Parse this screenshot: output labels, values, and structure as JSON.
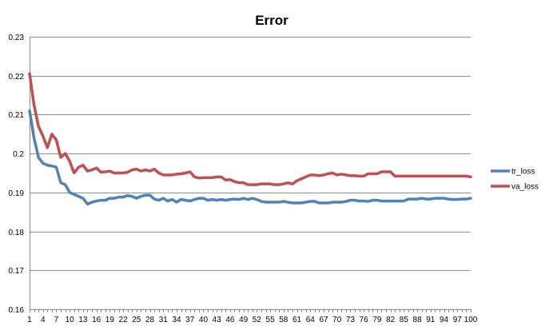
{
  "chart_data": {
    "type": "line",
    "title": "Error",
    "xlabel": "",
    "ylabel": "",
    "ylim": [
      0.16,
      0.23
    ],
    "yticks": [
      0.16,
      0.17,
      0.18,
      0.19,
      0.2,
      0.21,
      0.22,
      0.23
    ],
    "ytick_labels": [
      "0.16",
      "0.17",
      "0.18",
      "0.19",
      "0.2",
      "0.21",
      "0.22",
      "0.23"
    ],
    "xlim": [
      1,
      100
    ],
    "xtick_labels": [
      "1",
      "4",
      "7",
      "10",
      "13",
      "16",
      "19",
      "22",
      "25",
      "28",
      "31",
      "34",
      "37",
      "40",
      "43",
      "46",
      "49",
      "52",
      "55",
      "58",
      "61",
      "64",
      "67",
      "70",
      "73",
      "76",
      "79",
      "82",
      "85",
      "88",
      "91",
      "94",
      "97",
      "100"
    ],
    "grid": true,
    "legend": "right",
    "series": [
      {
        "name": "tr_loss",
        "color": "#4f81bd",
        "values": [
          0.211,
          0.204,
          0.199,
          0.1975,
          0.197,
          0.1968,
          0.1965,
          0.1925,
          0.192,
          0.19,
          0.1895,
          0.189,
          0.1885,
          0.187,
          0.1875,
          0.1878,
          0.188,
          0.188,
          0.1885,
          0.1885,
          0.1888,
          0.1888,
          0.1892,
          0.189,
          0.1885,
          0.189,
          0.1893,
          0.1893,
          0.1883,
          0.188,
          0.1885,
          0.1878,
          0.1882,
          0.1875,
          0.1882,
          0.188,
          0.1878,
          0.1882,
          0.1885,
          0.1885,
          0.188,
          0.1882,
          0.188,
          0.1882,
          0.188,
          0.1882,
          0.1883,
          0.1882,
          0.1885,
          0.1882,
          0.1885,
          0.1882,
          0.1877,
          0.1875,
          0.1875,
          0.1875,
          0.1875,
          0.1877,
          0.1875,
          0.1873,
          0.1873,
          0.1873,
          0.1875,
          0.1877,
          0.1877,
          0.1873,
          0.1873,
          0.1873,
          0.1875,
          0.1875,
          0.1875,
          0.1877,
          0.188,
          0.188,
          0.1878,
          0.1878,
          0.1877,
          0.188,
          0.188,
          0.1878,
          0.1878,
          0.1878,
          0.1878,
          0.1878,
          0.1878,
          0.1883,
          0.1883,
          0.1883,
          0.1885,
          0.1883,
          0.1883,
          0.1885,
          0.1885,
          0.1885,
          0.1883,
          0.1882,
          0.1882,
          0.1883,
          0.1883,
          0.1885
        ]
      },
      {
        "name": "va_loss",
        "color": "#c0504d",
        "values": [
          0.2205,
          0.2125,
          0.207,
          0.2045,
          0.2015,
          0.205,
          0.2035,
          0.199,
          0.2,
          0.198,
          0.195,
          0.1965,
          0.197,
          0.1955,
          0.1958,
          0.1963,
          0.1952,
          0.1953,
          0.1955,
          0.195,
          0.195,
          0.195,
          0.1952,
          0.1958,
          0.196,
          0.1955,
          0.1958,
          0.1955,
          0.196,
          0.195,
          0.1945,
          0.1945,
          0.1945,
          0.1947,
          0.1948,
          0.195,
          0.1953,
          0.194,
          0.1937,
          0.1938,
          0.1938,
          0.1938,
          0.194,
          0.194,
          0.1932,
          0.1933,
          0.1928,
          0.1925,
          0.1925,
          0.192,
          0.192,
          0.192,
          0.1922,
          0.1922,
          0.1922,
          0.192,
          0.192,
          0.1922,
          0.1925,
          0.1922,
          0.193,
          0.1935,
          0.194,
          0.1945,
          0.1945,
          0.1943,
          0.1945,
          0.1948,
          0.195,
          0.1945,
          0.1947,
          0.1945,
          0.1943,
          0.1943,
          0.1942,
          0.1942,
          0.1948,
          0.1948,
          0.1948,
          0.1953,
          0.1953,
          0.1953,
          0.1942,
          0.1942,
          0.1942,
          0.1942,
          0.1942,
          0.1942,
          0.1942,
          0.1942,
          0.1942,
          0.1942,
          0.1942,
          0.1942,
          0.1942,
          0.1942,
          0.1942,
          0.1942,
          0.1942,
          0.194
        ]
      }
    ]
  }
}
